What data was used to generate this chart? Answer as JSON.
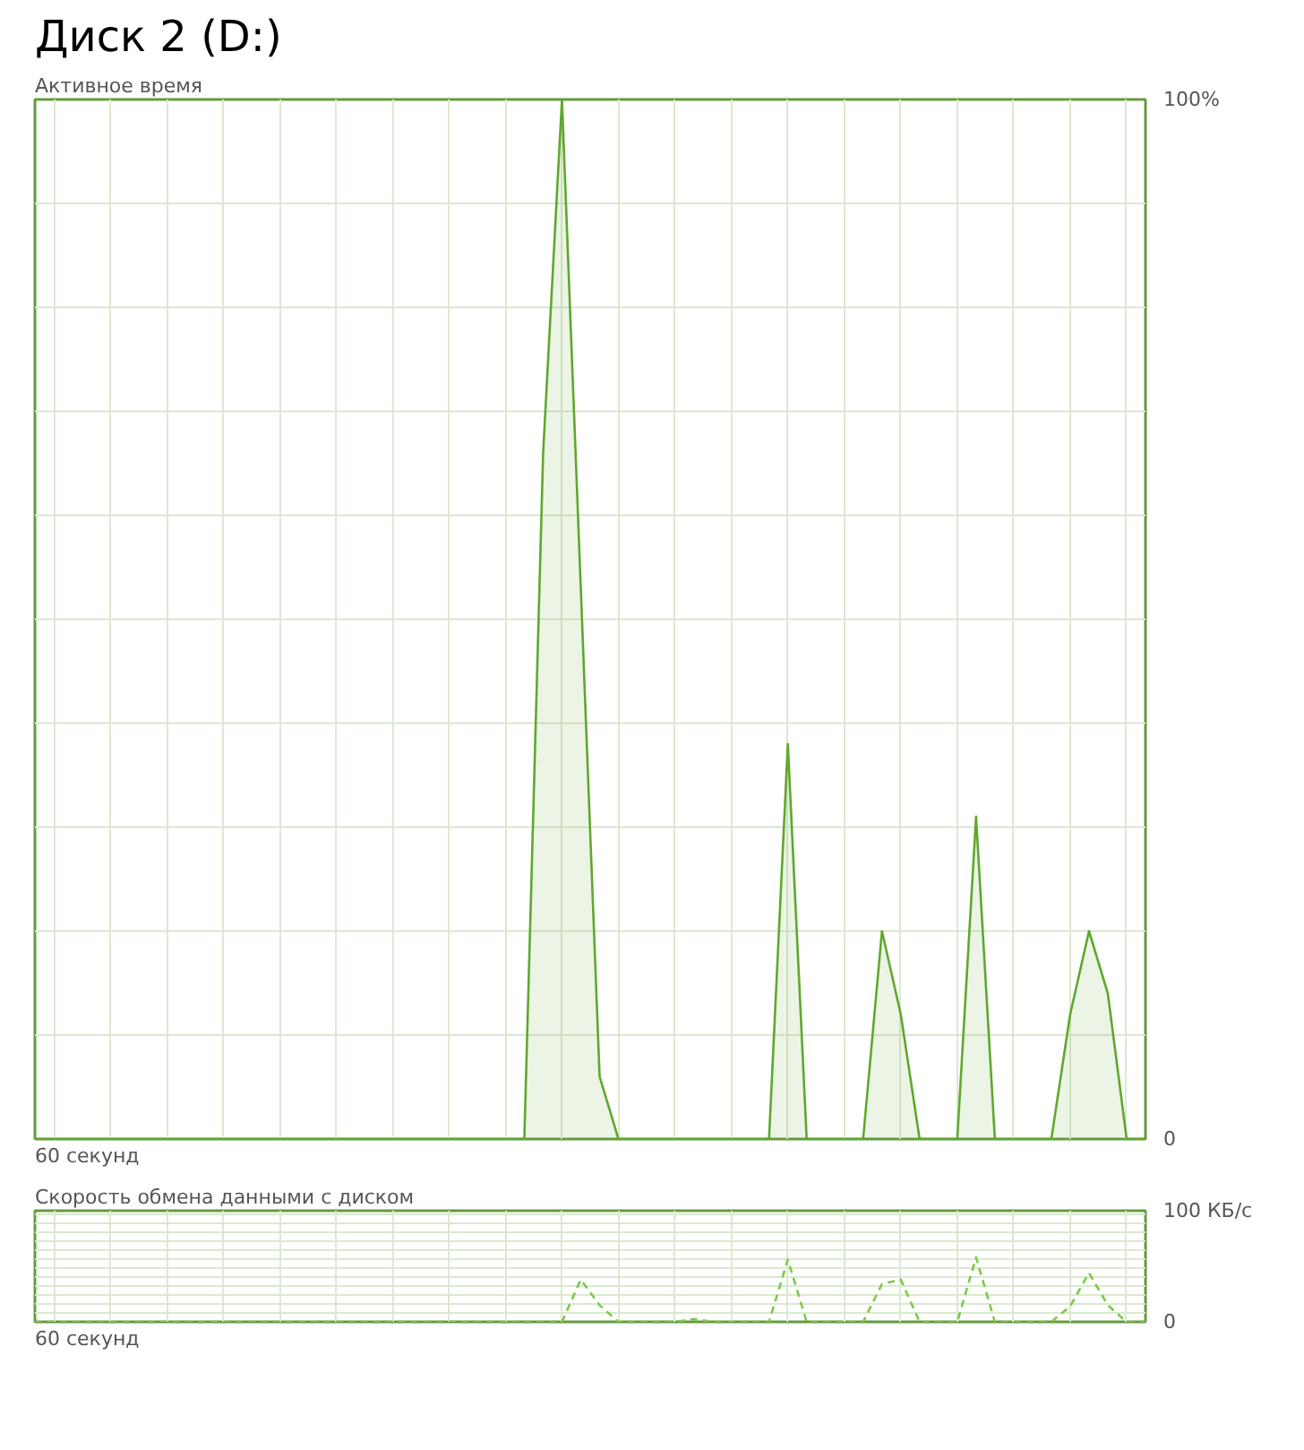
{
  "chart_data": [
    {
      "type": "area",
      "title": "Диск 2 (D:)",
      "ylabel": "Активное время",
      "xlabel": "60 секунд",
      "categories": [
        null,
        null,
        null,
        null,
        null,
        null,
        null,
        null,
        null,
        null,
        null,
        null,
        null,
        null,
        null,
        null,
        null,
        null,
        null,
        null,
        null,
        null,
        null,
        null,
        null,
        null,
        null,
        null,
        null,
        null,
        null,
        null,
        null,
        null,
        null,
        null,
        null,
        null,
        null,
        null,
        null,
        null,
        null,
        null,
        null,
        null,
        null,
        null,
        null,
        null,
        null,
        null,
        null,
        null,
        null,
        null,
        null,
        null,
        null,
        null
      ],
      "series": [
        {
          "color": "#5fa82e",
          "values": [
            0,
            0,
            0,
            0,
            0,
            0,
            0,
            0,
            0,
            0,
            0,
            0,
            0,
            0,
            0,
            0,
            0,
            0,
            0,
            0,
            0,
            0,
            0,
            0,
            0,
            0,
            0,
            66,
            100,
            53,
            6,
            0,
            0,
            0,
            0,
            0,
            0,
            0,
            0,
            0,
            38,
            0,
            0,
            0,
            0,
            20,
            12,
            0,
            0,
            0,
            31,
            0,
            0,
            0,
            0,
            12,
            20,
            14,
            0,
            0
          ]
        }
      ],
      "ylim": [
        0,
        100
      ],
      "yticks": [
        {
          "value": 0,
          "label": "0"
        },
        {
          "value": 10,
          "label": null
        },
        {
          "value": 20,
          "label": null
        },
        {
          "value": 30,
          "label": null
        },
        {
          "value": 40,
          "label": null
        },
        {
          "value": 50,
          "label": null
        },
        {
          "value": 60,
          "label": null
        },
        {
          "value": 70,
          "label": null
        },
        {
          "value": 80,
          "label": null
        },
        {
          "value": 90,
          "label": null
        },
        {
          "value": 100,
          "label": "100%"
        }
      ],
      "grid": true
    },
    {
      "type": "line",
      "ylabel": "Скорость обмена данными с диском",
      "xlabel": "60 секунд",
      "line_style": "dashed",
      "categories": [
        null,
        null,
        null,
        null,
        null,
        null,
        null,
        null,
        null,
        null,
        null,
        null,
        null,
        null,
        null,
        null,
        null,
        null,
        null,
        null,
        null,
        null,
        null,
        null,
        null,
        null,
        null,
        null,
        null,
        null,
        null,
        null,
        null,
        null,
        null,
        null,
        null,
        null,
        null,
        null,
        null,
        null,
        null,
        null,
        null,
        null,
        null,
        null,
        null,
        null,
        null,
        null,
        null,
        null,
        null,
        null,
        null,
        null,
        null,
        null
      ],
      "series": [
        {
          "color": "#7cc94a",
          "values": [
            0,
            0,
            0,
            0,
            0,
            0,
            0,
            0,
            0,
            0,
            0,
            0,
            0,
            0,
            0,
            0,
            0,
            0,
            0,
            0,
            0,
            0,
            0,
            0,
            0,
            0,
            0,
            0,
            0,
            38,
            15,
            0,
            0,
            0,
            0,
            2.5,
            0,
            0,
            0,
            0,
            56,
            0,
            0,
            0,
            0,
            34,
            38,
            0,
            0,
            0,
            58,
            0,
            0,
            0,
            0,
            14,
            44,
            15,
            0,
            0
          ]
        }
      ],
      "ylim": [
        0,
        100
      ],
      "yticks": [
        {
          "value": 0,
          "label": "0"
        },
        {
          "value": 8,
          "label": null
        },
        {
          "value": 16,
          "label": null
        },
        {
          "value": 24,
          "label": null
        },
        {
          "value": 32,
          "label": null
        },
        {
          "value": 40,
          "label": null
        },
        {
          "value": 48,
          "label": null
        },
        {
          "value": 56,
          "label": null
        },
        {
          "value": 64,
          "label": null
        },
        {
          "value": 72,
          "label": null
        },
        {
          "value": 80,
          "label": null
        },
        {
          "value": 88,
          "label": null
        },
        {
          "value": 96,
          "label": null
        },
        {
          "value": 100,
          "label": "100 КБ/с"
        }
      ],
      "grid": true
    }
  ]
}
